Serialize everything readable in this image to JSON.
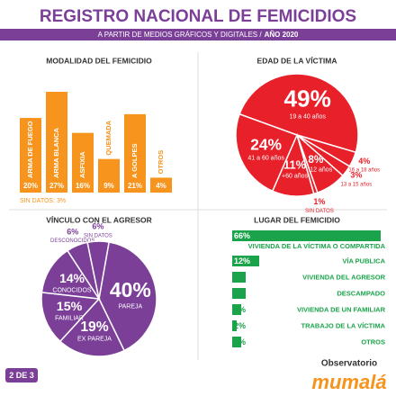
{
  "header": {
    "title": "REGISTRO NACIONAL DE FEMICIDIOS",
    "subtitle": "A PARTIR DE MEDIOS GRÁFICOS Y DIGITALES /",
    "year": "AÑO 2020"
  },
  "chart_data": [
    {
      "type": "bar",
      "title": "MODALIDAD DEL FEMICIDIO",
      "color": "#f7941d",
      "categories": [
        "ARMA DE FUEGO",
        "ARMA BLANCA",
        "ASFIXIA",
        "QUEMADA",
        "A GOLPES",
        "OTROS"
      ],
      "values": [
        20,
        27,
        16,
        9,
        21,
        4
      ],
      "value_labels": [
        "20%",
        "27%",
        "16%",
        "9%",
        "21%",
        "4%"
      ],
      "note": "SIN DATOS: 3%"
    },
    {
      "type": "pie",
      "title": "EDAD DE LA VÍCTIMA",
      "color": "#e8202a",
      "categories": [
        "19 a 40 años",
        "16 a 18 años",
        "13 a 15 años",
        "0 a 12 años",
        "SIN DATOS",
        "+60 años",
        "41 a 60 años"
      ],
      "values": [
        49,
        4,
        3,
        8,
        1,
        11,
        24
      ],
      "value_labels": [
        "49%",
        "4%",
        "3%",
        "8%",
        "1%",
        "11%",
        "24%"
      ]
    },
    {
      "type": "pie",
      "title": "VÍNCULO CON EL AGRESOR",
      "color": "#7b3f98",
      "categories": [
        "PAREJA",
        "EX PAREJA",
        "FAMILIAR",
        "CONOCIDOS",
        "DESCONOCIDOS",
        "SIN DATOS"
      ],
      "values": [
        40,
        19,
        15,
        14,
        6,
        6
      ],
      "value_labels": [
        "40%",
        "19%",
        "15%",
        "14%",
        "6%",
        "6%"
      ]
    },
    {
      "type": "hbar",
      "title": "LUGAR DEL FEMICIDIO",
      "color": "#1aa34a",
      "categories": [
        "VIVIENDA DE LA VÍCTIMA O COMPARTIDA",
        "VÍA PUBLICA",
        "VIVIENDA DEL AGRESOR",
        "DESCAMPADO",
        "VIVIENDA DE UN FAMILIAR",
        "TRABAJO DE LA VÍCTIMA",
        "OTROS"
      ],
      "values": [
        66,
        12,
        6,
        6,
        4,
        2,
        4
      ],
      "value_labels": [
        "66%",
        "12%",
        "6%",
        "6%",
        "4%",
        "2%",
        "4%"
      ]
    }
  ],
  "footer": {
    "page": "2 DE 3",
    "logo_top": "Observatorio",
    "logo_name": "mumalá"
  }
}
